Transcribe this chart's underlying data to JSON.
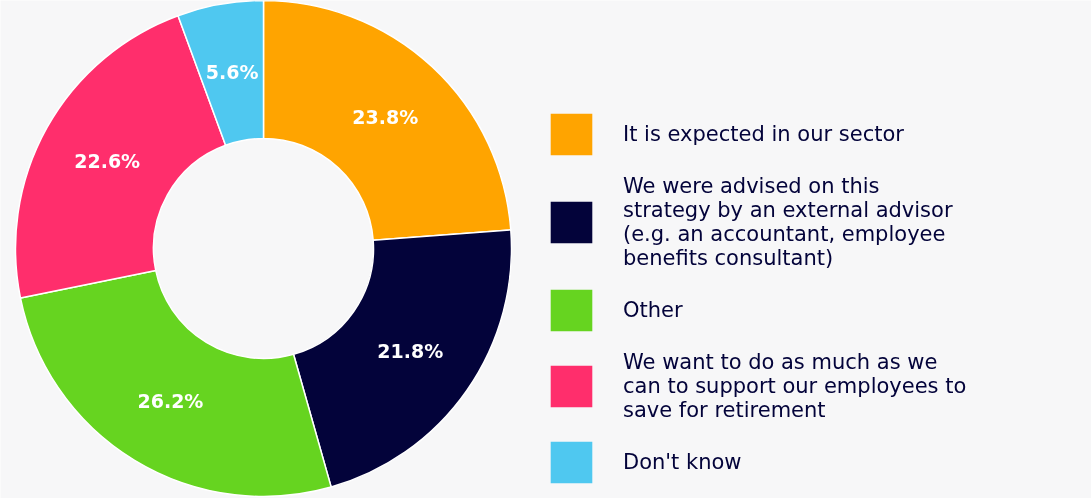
{
  "chart_data": {
    "type": "donut",
    "categories": [
      "It is expected in our sector",
      "We were advised on this\nstrategy by an external advisor\n(e.g. an accountant, employee\nbenefits consultant)",
      "Other",
      "We want to do as much as we\ncan to support our employees to\nsave for retirement",
      "Don't know"
    ],
    "values": [
      23.8,
      21.8,
      26.2,
      22.6,
      5.6
    ],
    "value_labels": [
      "23.8%",
      "21.8%",
      "26.2%",
      "22.6%",
      "5.6%"
    ],
    "colors": [
      "#ffa400",
      "#03033a",
      "#66d420",
      "#ff2e6c",
      "#4fc8f0"
    ],
    "legend": "right"
  }
}
